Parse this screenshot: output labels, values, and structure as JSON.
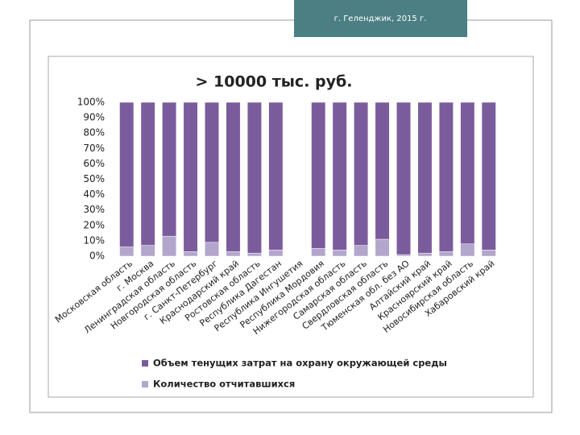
{
  "header": "г. Геленджик, 2015 г.",
  "chart_data": {
    "type": "stacked_bar",
    "title": "> 10000 тыс. руб.",
    "categories": [
      "Московская область",
      "г. Москва",
      "Ленинградская область",
      "Новгородская область",
      "г. Санкт-Петербург",
      "Краснодарский край",
      "Ростовская область",
      "Республика Дагестан",
      "Республика Ингушетия",
      "Республика Мордовия",
      "Нижегородская область",
      "Самарская область",
      "Свердловская область",
      "Тюменская обл. без АО",
      "Алтайский край",
      "Красноярский край",
      "Новосибирская область",
      "Хабаровский край"
    ],
    "series": [
      {
        "name": "Количество отчитавшихся",
        "color": "#b3a6cc",
        "values": [
          6,
          7,
          13,
          3,
          9,
          3,
          2,
          4,
          null,
          5,
          4,
          7,
          11,
          1,
          2,
          3,
          8,
          4
        ]
      },
      {
        "name": "Объем тенущих затрат на охрану окружающей среды",
        "color": "#7a5c9c",
        "values": [
          94,
          93,
          87,
          97,
          91,
          97,
          98,
          96,
          null,
          95,
          96,
          93,
          89,
          99,
          98,
          97,
          92,
          96
        ]
      }
    ],
    "ylim": [
      0,
      100
    ],
    "yticks": [
      {
        "value": 0,
        "label": "0%"
      },
      {
        "value": 10,
        "label": "10%"
      },
      {
        "value": 20,
        "label": "20%"
      },
      {
        "value": 30,
        "label": "30%"
      },
      {
        "value": 40,
        "label": "40%"
      },
      {
        "value": 50,
        "label": "50%"
      },
      {
        "value": 60,
        "label": "60%"
      },
      {
        "value": 70,
        "label": "70%"
      },
      {
        "value": 80,
        "label": "80%"
      },
      {
        "value": 90,
        "label": "90%"
      },
      {
        "value": 100,
        "label": "100%"
      }
    ],
    "legend": "bottom"
  }
}
